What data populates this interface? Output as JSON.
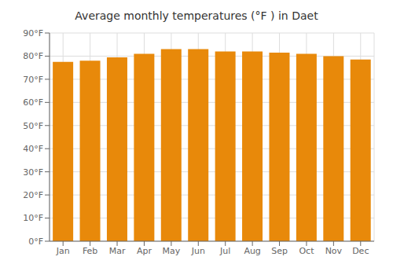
{
  "chart_data": {
    "type": "bar",
    "title": "Average monthly temperatures (°F ) in Daet",
    "categories": [
      "Jan",
      "Feb",
      "Mar",
      "Apr",
      "May",
      "Jun",
      "Jul",
      "Aug",
      "Sep",
      "Oct",
      "Nov",
      "Dec"
    ],
    "values": [
      77.5,
      78.0,
      79.5,
      81.0,
      83.0,
      83.0,
      82.0,
      82.0,
      81.5,
      81.0,
      80.0,
      78.5
    ],
    "color": "#E8890A",
    "ylim": [
      0,
      90
    ],
    "yticks": [
      {
        "value": 0,
        "label": "0°F"
      },
      {
        "value": 10,
        "label": "10°F"
      },
      {
        "value": 20,
        "label": "20°F"
      },
      {
        "value": 30,
        "label": "30°F"
      },
      {
        "value": 40,
        "label": "40°F"
      },
      {
        "value": 50,
        "label": "50°F"
      },
      {
        "value": 60,
        "label": "60°F"
      },
      {
        "value": 70,
        "label": "70°F"
      },
      {
        "value": 80,
        "label": "80°F"
      },
      {
        "value": 90,
        "label": "90°F"
      }
    ],
    "grid": true
  }
}
